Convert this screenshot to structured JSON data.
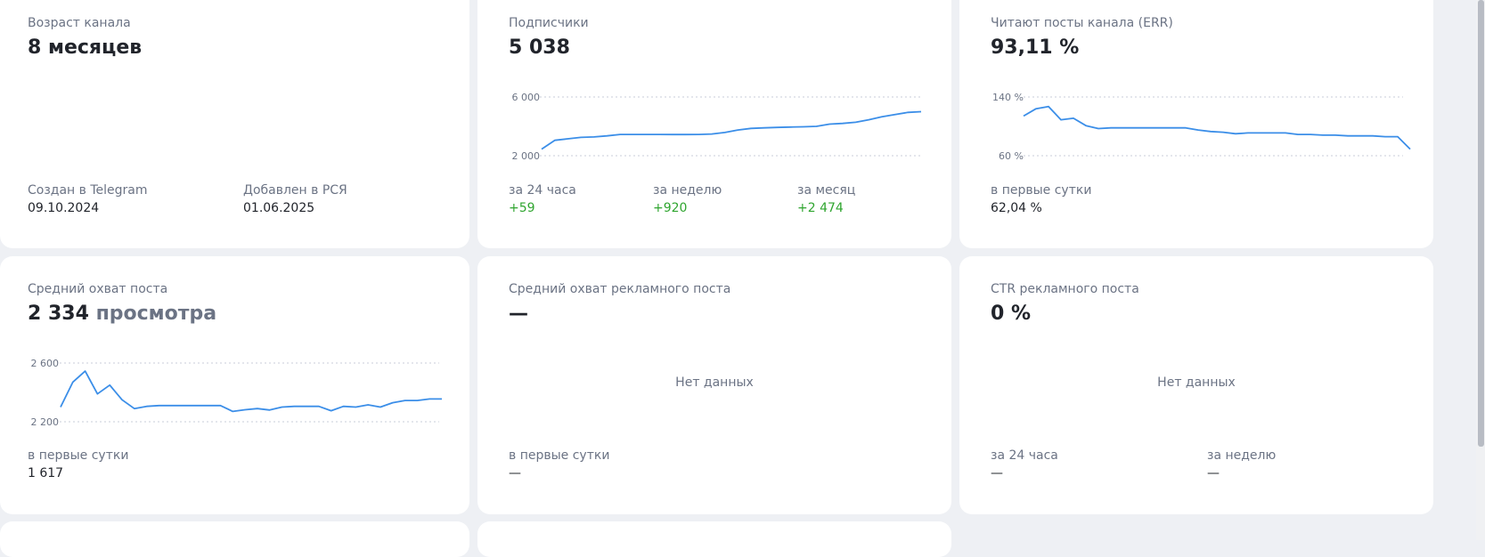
{
  "cards": {
    "age": {
      "label": "Возраст канала",
      "value": "8 месяцев",
      "created_label": "Создан в Telegram",
      "created_value": "09.10.2024",
      "added_label": "Добавлен в РСЯ",
      "added_value": "01.06.2025"
    },
    "subscribers": {
      "label": "Подписчики",
      "value": "5 038",
      "tick_top": "6 000",
      "tick_bottom": "2 000",
      "d24_label": "за 24 часа",
      "d24_value": "+59",
      "week_label": "за неделю",
      "week_value": "+920",
      "month_label": "за месяц",
      "month_value": "+2 474"
    },
    "err": {
      "label": "Читают посты канала (ERR)",
      "value": "93,11 %",
      "tick_top": "140 %",
      "tick_bottom": "60 %",
      "first_day_label": "в первые сутки",
      "first_day_value": "62,04 %"
    },
    "avg_reach": {
      "label": "Средний охват поста",
      "value": "2 334",
      "unit": "просмотра",
      "tick_top": "2 600",
      "tick_bottom": "2 200",
      "first_day_label": "в первые сутки",
      "first_day_value": "1 617"
    },
    "ad_reach": {
      "label": "Средний охват рекламного поста",
      "value": "—",
      "no_data": "Нет данных",
      "first_day_label": "в первые сутки",
      "first_day_value": "—"
    },
    "ctr": {
      "label": "CTR рекламного поста",
      "value": "0 %",
      "no_data": "Нет данных",
      "d24_label": "за 24 часа",
      "d24_value": "—",
      "week_label": "за неделю",
      "week_value": "—"
    }
  },
  "chart_data": [
    {
      "type": "line",
      "name": "subscribers",
      "ylim": [
        2000,
        6000
      ],
      "values": [
        2450,
        3050,
        3150,
        3250,
        3280,
        3350,
        3450,
        3450,
        3450,
        3450,
        3440,
        3440,
        3450,
        3480,
        3580,
        3750,
        3860,
        3900,
        3930,
        3950,
        3970,
        4000,
        4150,
        4200,
        4280,
        4450,
        4650,
        4800,
        4950,
        5000
      ]
    },
    {
      "type": "line",
      "name": "err",
      "ylim": [
        60,
        140
      ],
      "values": [
        114,
        124,
        127,
        109,
        111,
        101,
        97,
        98,
        98,
        98,
        98,
        98,
        98,
        98,
        95,
        93,
        92,
        90,
        91,
        91,
        91,
        91,
        89,
        89,
        88,
        88,
        87,
        87,
        87,
        86,
        86,
        69
      ]
    },
    {
      "type": "line",
      "name": "avg_reach",
      "ylim": [
        2200,
        2600
      ],
      "values": [
        2300,
        2470,
        2545,
        2390,
        2450,
        2350,
        2290,
        2305,
        2310,
        2310,
        2310,
        2310,
        2310,
        2310,
        2270,
        2282,
        2290,
        2280,
        2300,
        2305,
        2305,
        2305,
        2275,
        2305,
        2300,
        2315,
        2300,
        2330,
        2345,
        2345,
        2355,
        2355
      ]
    }
  ]
}
